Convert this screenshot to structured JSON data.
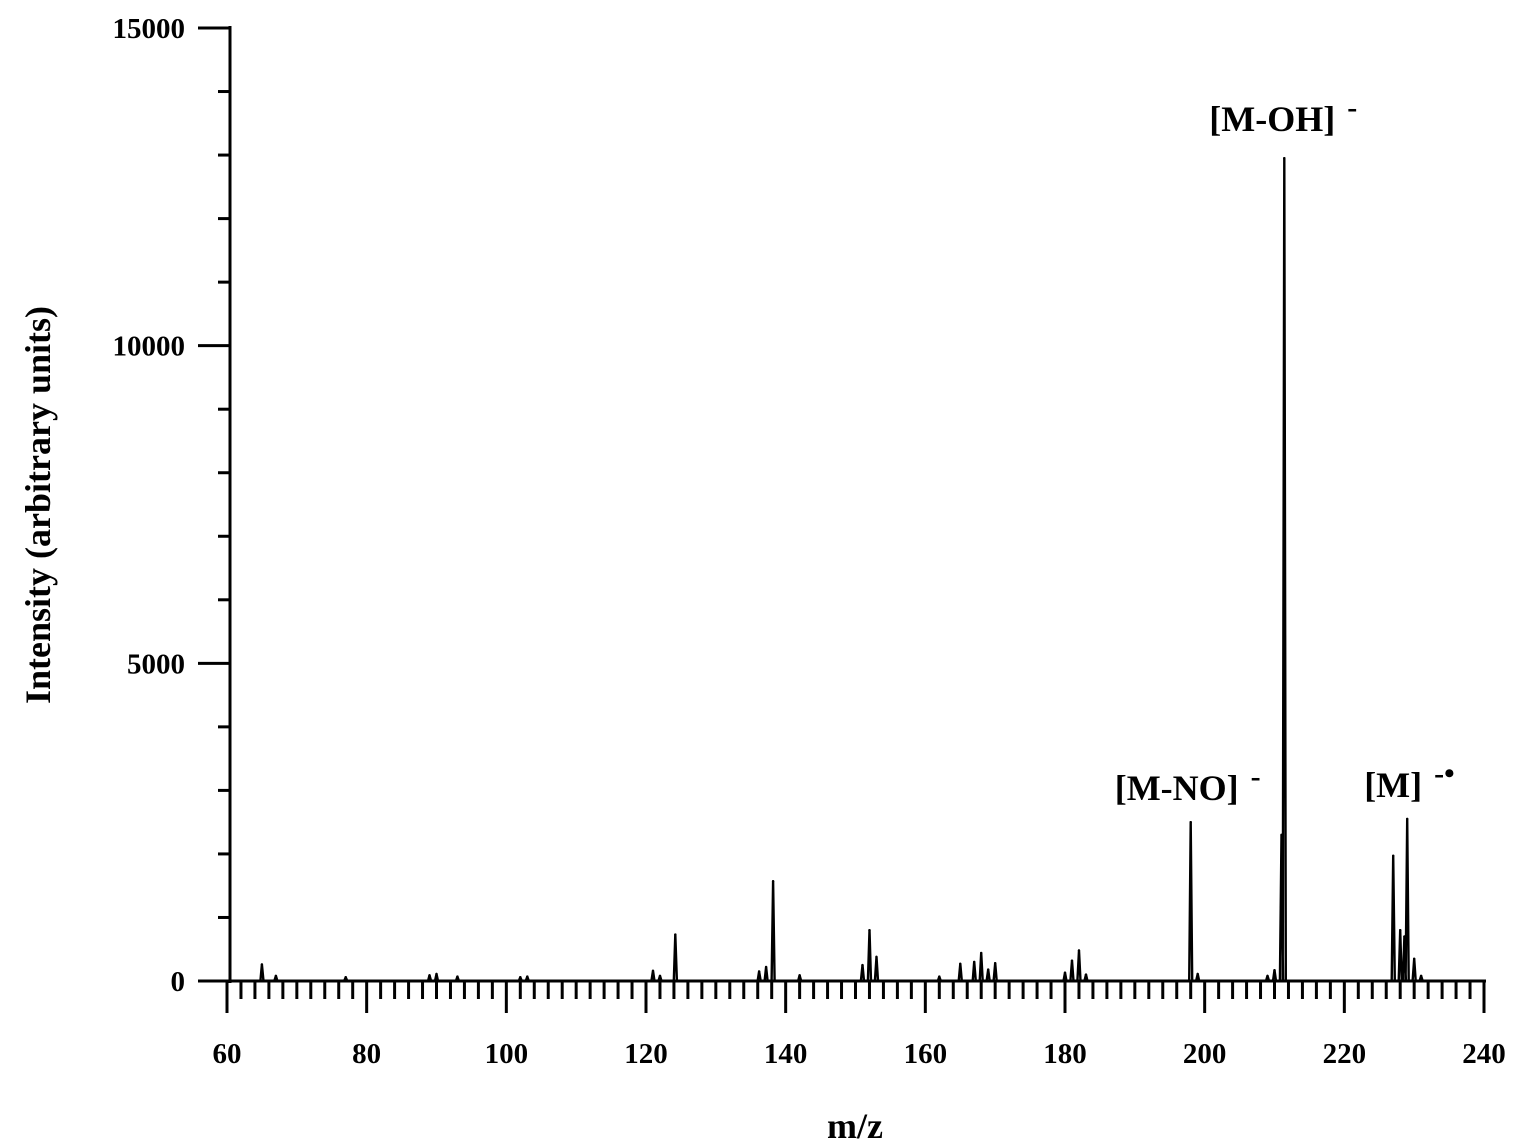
{
  "chart_data": {
    "type": "line",
    "xlabel": "m/z",
    "ylabel": "Intensity (arbitrary units)",
    "xlim": [
      60,
      240
    ],
    "ylim": [
      0,
      15000
    ],
    "x_ticks": [
      60,
      80,
      100,
      120,
      140,
      160,
      180,
      200,
      220,
      240
    ],
    "y_ticks": [
      0,
      5000,
      10000,
      15000
    ],
    "x_tick_labels": [
      "60",
      "80",
      "100",
      "120",
      "140",
      "160",
      "180",
      "200",
      "220",
      "240"
    ],
    "y_tick_labels": [
      "0",
      "5000",
      "10000",
      "15000"
    ],
    "grid": false,
    "peaks": [
      {
        "x": 65.0,
        "y": 260
      },
      {
        "x": 67.0,
        "y": 80
      },
      {
        "x": 77.0,
        "y": 60
      },
      {
        "x": 89.0,
        "y": 90
      },
      {
        "x": 90.0,
        "y": 110
      },
      {
        "x": 93.0,
        "y": 70
      },
      {
        "x": 102.0,
        "y": 60
      },
      {
        "x": 103.0,
        "y": 70
      },
      {
        "x": 121.0,
        "y": 160
      },
      {
        "x": 122.0,
        "y": 80
      },
      {
        "x": 124.2,
        "y": 730
      },
      {
        "x": 136.2,
        "y": 150
      },
      {
        "x": 137.2,
        "y": 220
      },
      {
        "x": 138.2,
        "y": 1570
      },
      {
        "x": 142.0,
        "y": 90
      },
      {
        "x": 151.0,
        "y": 250
      },
      {
        "x": 152.0,
        "y": 800
      },
      {
        "x": 153.0,
        "y": 380
      },
      {
        "x": 162.0,
        "y": 70
      },
      {
        "x": 165.0,
        "y": 270
      },
      {
        "x": 167.0,
        "y": 300
      },
      {
        "x": 168.0,
        "y": 440
      },
      {
        "x": 169.0,
        "y": 180
      },
      {
        "x": 170.0,
        "y": 280
      },
      {
        "x": 180.0,
        "y": 130
      },
      {
        "x": 181.0,
        "y": 320
      },
      {
        "x": 182.0,
        "y": 480
      },
      {
        "x": 183.0,
        "y": 100
      },
      {
        "x": 198.0,
        "y": 2500
      },
      {
        "x": 199.0,
        "y": 110
      },
      {
        "x": 209.0,
        "y": 80
      },
      {
        "x": 210.0,
        "y": 170
      },
      {
        "x": 211.0,
        "y": 2300
      },
      {
        "x": 211.4,
        "y": 12950
      },
      {
        "x": 227.0,
        "y": 1970
      },
      {
        "x": 228.0,
        "y": 800
      },
      {
        "x": 228.6,
        "y": 700
      },
      {
        "x": 229.0,
        "y": 2550
      },
      {
        "x": 230.0,
        "y": 350
      },
      {
        "x": 231.0,
        "y": 80
      }
    ],
    "annotations": [
      {
        "text": "[M-NO]",
        "charge": "-",
        "x": 198,
        "y": 2500
      },
      {
        "text": "[M-OH]",
        "charge": "-",
        "x": 211.4,
        "y": 12950
      },
      {
        "text": "[M]",
        "charge": "-•",
        "x": 229,
        "y": 2550
      }
    ]
  }
}
